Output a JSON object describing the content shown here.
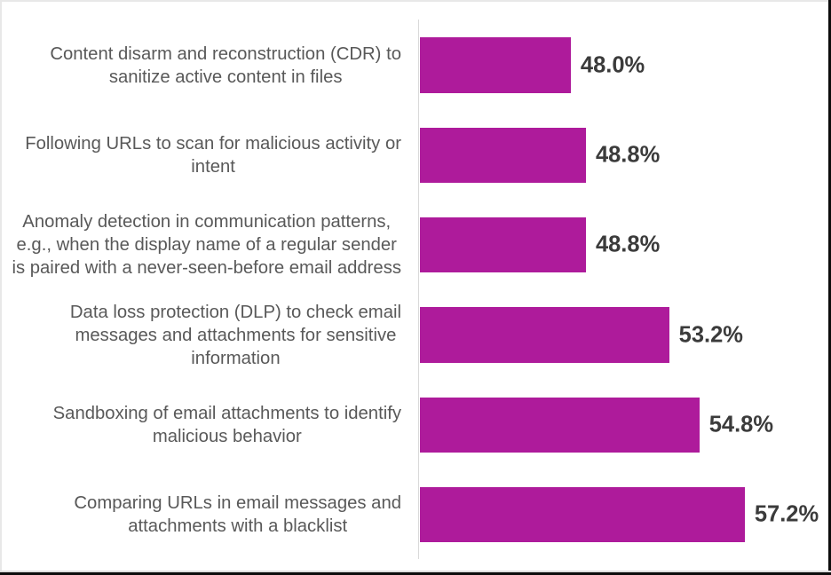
{
  "chart_data": {
    "type": "bar",
    "orientation": "horizontal",
    "title": "",
    "xlabel": "",
    "ylabel": "",
    "categories": [
      "Content disarm and reconstruction (CDR) to sanitize active content in files",
      "Following URLs to scan for malicious activity or intent",
      "Anomaly detection in communication patterns, e.g., when the display name of a regular sender is paired with a never-seen-before email address",
      "Data loss protection (DLP) to check email messages and attachments for sensitive information",
      "Sandboxing of email attachments to identify malicious behavior",
      "Comparing URLs in email messages and attachments with a blacklist"
    ],
    "category_lines": [
      [
        "Content disarm and reconstruction (CDR) to",
        "sanitize active content in files"
      ],
      [
        "Following URLs to scan for malicious activity or",
        "intent"
      ],
      [
        "Anomaly detection in communication patterns,",
        "e.g., when the display name of a regular sender",
        "is paired with a never-seen-before email address"
      ],
      [
        "Data loss protection (DLP) to check email",
        "messages and attachments for sensitive",
        "information"
      ],
      [
        "Sandboxing of email attachments to identify",
        "malicious behavior"
      ],
      [
        "Comparing URLs in email messages and",
        "attachments with a blacklist"
      ]
    ],
    "values": [
      48.0,
      48.8,
      48.8,
      53.2,
      54.8,
      57.2
    ],
    "value_labels": [
      "48.0%",
      "48.8%",
      "48.8%",
      "53.2%",
      "54.8%",
      "57.2%"
    ],
    "xlim": [
      40,
      61.6
    ],
    "grid": false,
    "legend": false,
    "colors": {
      "bar": "#ae1b9b",
      "category_text": "#595959",
      "value_text": "#3b3b3b",
      "axis_line": "#d9d9d9"
    }
  }
}
